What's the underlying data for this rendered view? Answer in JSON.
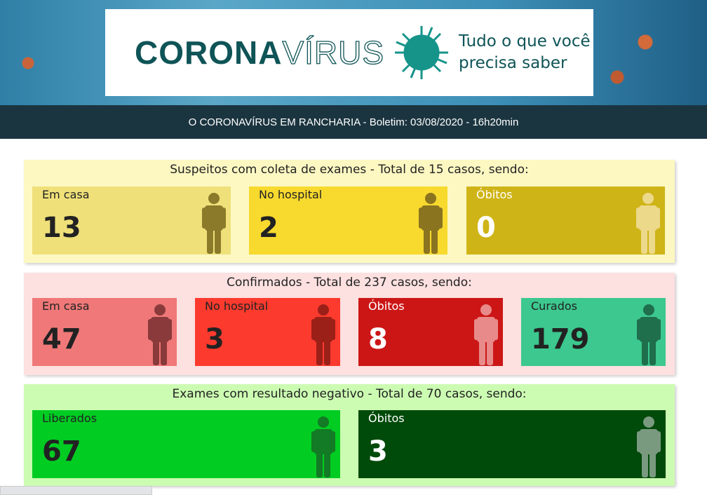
{
  "header": {
    "logo_bold": "CORONA",
    "logo_outline": "VÍRUS",
    "tagline_line1": "Tudo o que você",
    "tagline_line2": "precisa saber",
    "subtitle": "O CORONAVÍRUS EM RANCHARIA - Boletim: 03/08/2020 - 16h20min"
  },
  "sections": [
    {
      "title": "Suspeitos com coleta de exames - Total de 15 casos, sendo:",
      "bg": "#fdf8c2",
      "cards": [
        {
          "label": "Em casa",
          "value": "13",
          "bg": "#efe07a",
          "text": "#222",
          "icon": "#8a7a2a"
        },
        {
          "label": "No hospital",
          "value": "2",
          "bg": "#f8d92e",
          "text": "#222",
          "icon": "#8a7420"
        },
        {
          "label": "Óbitos",
          "value": "0",
          "bg": "#cfb417",
          "text": "#fff",
          "icon": "#ecd98a"
        }
      ]
    },
    {
      "title": "Confirmados - Total de 237 casos, sendo:",
      "bg": "#fde0e0",
      "cards": [
        {
          "label": "Em casa",
          "value": "47",
          "bg": "#f07878",
          "text": "#222",
          "icon": "#8a3a3a"
        },
        {
          "label": "No hospital",
          "value": "3",
          "bg": "#fc3a2e",
          "text": "#222",
          "icon": "#9a2018"
        },
        {
          "label": "Óbitos",
          "value": "8",
          "bg": "#cc1616",
          "text": "#fff",
          "icon": "#e88a8a"
        },
        {
          "label": "Curados",
          "value": "179",
          "bg": "#3cc88e",
          "text": "#222",
          "icon": "#1f6e4c"
        }
      ]
    },
    {
      "title": "Exames com resultado negativo - Total de 70 casos, sendo:",
      "bg": "#ccfcb2",
      "cards": [
        {
          "label": "Liberados",
          "value": "67",
          "bg": "#00cc22",
          "text": "#222",
          "icon": "#137a25"
        },
        {
          "label": "Óbitos",
          "value": "3",
          "bg": "#004a0a",
          "text": "#fff",
          "icon": "#7a9a80"
        }
      ]
    }
  ]
}
